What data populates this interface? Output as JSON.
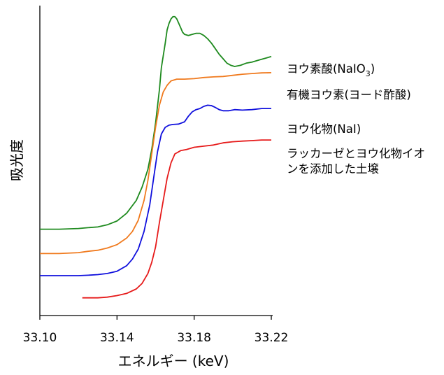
{
  "chart_data": {
    "type": "line",
    "xlabel": "エネルギー (keV)",
    "ylabel": "吸光度",
    "xlim": [
      33.1,
      33.22
    ],
    "x_ticks": [
      "33.10",
      "33.14",
      "33.18",
      "33.22"
    ],
    "y_ticks": [],
    "grid": false,
    "legend": "labels at right end of each curve",
    "series": [
      {
        "name": "ヨウ素酸(NaIO3)",
        "label_main": "ヨウ素酸(NaIO",
        "label_sub": "3",
        "label_end": ")",
        "color": "#1e8a1e",
        "x": [
          33.1,
          33.11,
          33.12,
          33.125,
          33.13,
          33.135,
          33.14,
          33.145,
          33.15,
          33.153,
          33.156,
          33.158,
          33.16,
          33.162,
          33.163,
          33.165,
          33.166,
          33.167,
          33.168,
          33.169,
          33.17,
          33.171,
          33.172,
          33.173,
          33.174,
          33.175,
          33.177,
          33.179,
          33.181,
          33.183,
          33.185,
          33.187,
          33.189,
          33.191,
          33.193,
          33.195,
          33.197,
          33.199,
          33.201,
          33.204,
          33.207,
          33.21,
          33.214,
          33.218,
          33.22
        ],
        "y": [
          0.69,
          0.69,
          0.693,
          0.697,
          0.7,
          0.71,
          0.727,
          0.762,
          0.82,
          0.88,
          0.96,
          1.05,
          1.17,
          1.32,
          1.42,
          1.53,
          1.59,
          1.62,
          1.64,
          1.65,
          1.65,
          1.64,
          1.62,
          1.6,
          1.58,
          1.57,
          1.565,
          1.57,
          1.575,
          1.575,
          1.565,
          1.55,
          1.53,
          1.505,
          1.48,
          1.46,
          1.44,
          1.43,
          1.425,
          1.43,
          1.44,
          1.445,
          1.455,
          1.465,
          1.47
        ]
      },
      {
        "name": "有機ヨウ素(ヨード酢酸)",
        "label_main": "有機ヨウ素(ヨード酢酸)",
        "label_sub": "",
        "label_end": "",
        "color": "#f07a1e",
        "x": [
          33.1,
          33.11,
          33.12,
          33.125,
          33.13,
          33.135,
          33.14,
          33.145,
          33.148,
          33.151,
          33.154,
          33.156,
          33.158,
          33.16,
          33.162,
          33.164,
          33.166,
          33.168,
          33.171,
          33.175,
          33.18,
          33.185,
          33.19,
          33.195,
          33.2,
          33.205,
          33.21,
          33.215,
          33.22
        ],
        "y": [
          0.58,
          0.58,
          0.584,
          0.59,
          0.595,
          0.605,
          0.62,
          0.65,
          0.68,
          0.73,
          0.82,
          0.91,
          1.03,
          1.15,
          1.25,
          1.31,
          1.34,
          1.36,
          1.368,
          1.368,
          1.37,
          1.375,
          1.378,
          1.38,
          1.385,
          1.39,
          1.393,
          1.396,
          1.397
        ]
      },
      {
        "name": "ヨウ化物(NaI)",
        "label_main": "ヨウ化物(NaI)",
        "label_sub": "",
        "label_end": "",
        "color": "#1010dd",
        "x": [
          33.1,
          33.11,
          33.12,
          33.125,
          33.13,
          33.135,
          33.14,
          33.145,
          33.148,
          33.151,
          33.154,
          33.157,
          33.159,
          33.161,
          33.163,
          33.165,
          33.167,
          33.169,
          33.172,
          33.175,
          33.177,
          33.179,
          33.181,
          33.183,
          33.185,
          33.187,
          33.189,
          33.191,
          33.193,
          33.195,
          33.198,
          33.201,
          33.205,
          33.21,
          33.215,
          33.22
        ],
        "y": [
          0.48,
          0.48,
          0.48,
          0.482,
          0.485,
          0.49,
          0.5,
          0.525,
          0.555,
          0.6,
          0.68,
          0.8,
          0.92,
          1.04,
          1.12,
          1.15,
          1.16,
          1.163,
          1.165,
          1.175,
          1.2,
          1.22,
          1.23,
          1.235,
          1.245,
          1.25,
          1.248,
          1.24,
          1.23,
          1.225,
          1.225,
          1.23,
          1.228,
          1.23,
          1.235,
          1.235
        ]
      },
      {
        "name": "ラッカーゼとヨウ化物イオンを添加した土壌",
        "label_lines": [
          "ラッカーゼとヨウ化物イオ",
          "ンを添加した土壌"
        ],
        "label_main": "",
        "label_sub": "",
        "label_end": "",
        "color": "#e61a1a",
        "x": [
          33.122,
          33.13,
          33.135,
          33.14,
          33.145,
          33.15,
          33.153,
          33.156,
          33.158,
          33.16,
          33.162,
          33.164,
          33.166,
          33.168,
          33.17,
          33.173,
          33.176,
          33.18,
          33.185,
          33.19,
          33.195,
          33.2,
          33.205,
          33.21,
          33.215,
          33.22
        ],
        "y": [
          0.38,
          0.38,
          0.383,
          0.39,
          0.4,
          0.42,
          0.445,
          0.49,
          0.54,
          0.61,
          0.72,
          0.82,
          0.92,
          0.99,
          1.03,
          1.045,
          1.05,
          1.06,
          1.065,
          1.07,
          1.08,
          1.085,
          1.088,
          1.09,
          1.093,
          1.093
        ]
      }
    ]
  }
}
